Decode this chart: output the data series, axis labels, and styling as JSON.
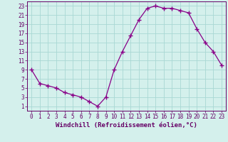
{
  "x": [
    0,
    1,
    2,
    3,
    4,
    5,
    6,
    7,
    8,
    9,
    10,
    11,
    12,
    13,
    14,
    15,
    16,
    17,
    18,
    19,
    20,
    21,
    22,
    23
  ],
  "y": [
    9,
    6,
    5.5,
    5,
    4,
    3.5,
    3,
    2,
    1,
    3,
    9,
    13,
    16.5,
    20,
    22.5,
    23,
    22.5,
    22.5,
    22,
    21.5,
    18,
    15,
    13,
    10
  ],
  "line_color": "#880088",
  "marker": "+",
  "marker_size": 4,
  "linewidth": 0.9,
  "xlabel": "Windchill (Refroidissement éolien,°C)",
  "xlabel_fontsize": 6.5,
  "xlabel_color": "#660066",
  "background_color": "#d4f0ec",
  "grid_color": "#a8d8d4",
  "tick_color": "#660066",
  "tick_fontsize": 5.5,
  "xlim": [
    -0.5,
    23.5
  ],
  "ylim": [
    0,
    24
  ],
  "yticks": [
    1,
    3,
    5,
    7,
    9,
    11,
    13,
    15,
    17,
    19,
    21,
    23
  ],
  "xticks": [
    0,
    1,
    2,
    3,
    4,
    5,
    6,
    7,
    8,
    9,
    10,
    11,
    12,
    13,
    14,
    15,
    16,
    17,
    18,
    19,
    20,
    21,
    22,
    23
  ]
}
